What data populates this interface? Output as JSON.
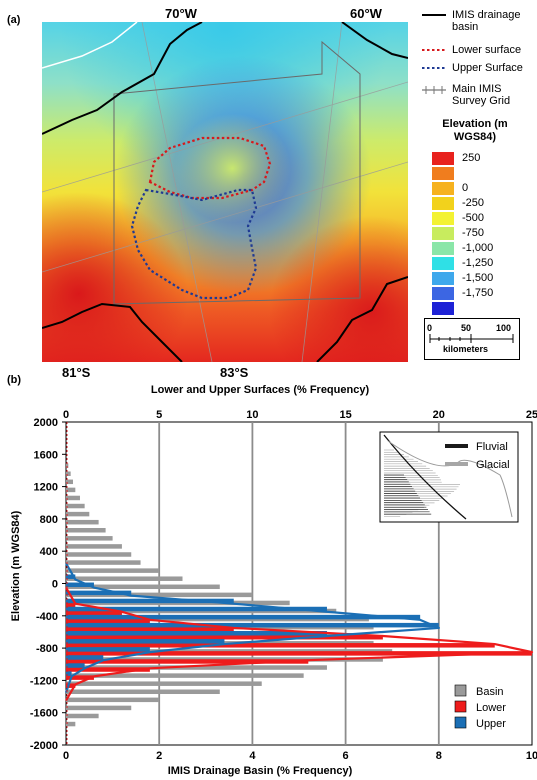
{
  "panel_a": {
    "label": "(a)",
    "lon_labels": [
      "70°W",
      "60°W"
    ],
    "lat_labels": [
      "81°S",
      "83°S"
    ],
    "legend": [
      {
        "label": "IMIS drainage basin",
        "style": "solid",
        "color": "#000000"
      },
      {
        "label": "Lower surface",
        "style": "dotted",
        "color": "#d7191c"
      },
      {
        "label": "Upper Surface",
        "style": "dotted",
        "color": "#1f3a93"
      },
      {
        "label": "Main IMIS Survey Grid",
        "style": "grid",
        "color": "#777777"
      }
    ],
    "elevation_title": "Elevation (m WGS84)",
    "elevation_classes": [
      {
        "label": "250",
        "color": "#e8221e"
      },
      {
        "label": "",
        "color": "#f07d1e"
      },
      {
        "label": "0",
        "color": "#f6b21f"
      },
      {
        "label": "-250",
        "color": "#f2d21c"
      },
      {
        "label": "-500",
        "color": "#f3f233"
      },
      {
        "label": "-750",
        "color": "#c8ec5e"
      },
      {
        "label": "-1,000",
        "color": "#8ae6a8"
      },
      {
        "label": "-1,250",
        "color": "#2fe0e6"
      },
      {
        "label": "-1,500",
        "color": "#3ea8ec"
      },
      {
        "label": "-1,750",
        "color": "#3c66e3"
      },
      {
        "label": "",
        "color": "#1d22d6"
      }
    ],
    "scale": {
      "ticks": [
        "0",
        "50",
        "100"
      ],
      "unit": "kilometers"
    }
  },
  "chart_data": {
    "type": "bar",
    "orientation": "horizontal",
    "panel_label": "(b)",
    "top_axis_title": "Lower and Upper Surfaces (% Frequency)",
    "bottom_axis_title": "IMIS Drainage Basin (% Frequency)",
    "ylabel": "Elevation (m WGS84)",
    "ylim": [
      -2000,
      2000
    ],
    "top_xlim": [
      0,
      25
    ],
    "bottom_xlim": [
      0,
      10
    ],
    "yticks": [
      "2000",
      "1600",
      "1200",
      "800",
      "400",
      "0",
      "-400",
      "-800",
      "-1200",
      "-1600",
      "-2000"
    ],
    "top_ticks": [
      "0",
      "5",
      "10",
      "15",
      "20",
      "25"
    ],
    "bottom_ticks": [
      "0",
      "2",
      "4",
      "6",
      "8",
      "10"
    ],
    "grid": true,
    "legend_position": "bottom-right",
    "series": [
      {
        "name": "Basin",
        "axis": "bottom",
        "color": "#9a9a9a",
        "bin_centers": [
          1450,
          1350,
          1250,
          1150,
          1050,
          950,
          850,
          750,
          650,
          550,
          450,
          350,
          250,
          150,
          50,
          -50,
          -150,
          -250,
          -350,
          -450,
          -550,
          -650,
          -750,
          -850,
          -950,
          -1050,
          -1150,
          -1250,
          -1350,
          -1450,
          -1550,
          -1650,
          -1750
        ],
        "values": [
          0.05,
          0.1,
          0.15,
          0.2,
          0.3,
          0.4,
          0.5,
          0.7,
          0.85,
          1.0,
          1.2,
          1.4,
          1.6,
          2.0,
          2.5,
          3.3,
          4.0,
          4.8,
          5.8,
          6.5,
          6.6,
          6.3,
          6.6,
          7.0,
          6.8,
          5.6,
          5.1,
          4.2,
          3.3,
          2.0,
          1.4,
          0.7,
          0.2
        ]
      },
      {
        "name": "Lower",
        "axis": "top",
        "color": "#ee1c1c",
        "bin_centers": [
          -250,
          -350,
          -450,
          -550,
          -650,
          -750,
          -850,
          -950,
          -1050,
          -1150,
          -1250
        ],
        "values": [
          0.5,
          3.0,
          4.5,
          9.0,
          17.0,
          23.0,
          25.0,
          13.0,
          4.5,
          1.5,
          0.5
        ]
      },
      {
        "name": "Upper",
        "axis": "top",
        "color": "#1b6fb5",
        "bin_centers": [
          50,
          -50,
          -150,
          -250,
          -350,
          -450,
          -550,
          -650,
          -750,
          -850,
          -950,
          -1050,
          -1150
        ],
        "values": [
          0.5,
          1.5,
          3.5,
          9.0,
          14.0,
          19.0,
          20.0,
          14.0,
          8.5,
          4.5,
          2.0,
          1.0,
          0.3
        ]
      }
    ],
    "inset_legend": [
      {
        "name": "Fluvial",
        "color": "#1a1a1a"
      },
      {
        "name": "Glacial",
        "color": "#a6a6a6"
      }
    ]
  }
}
